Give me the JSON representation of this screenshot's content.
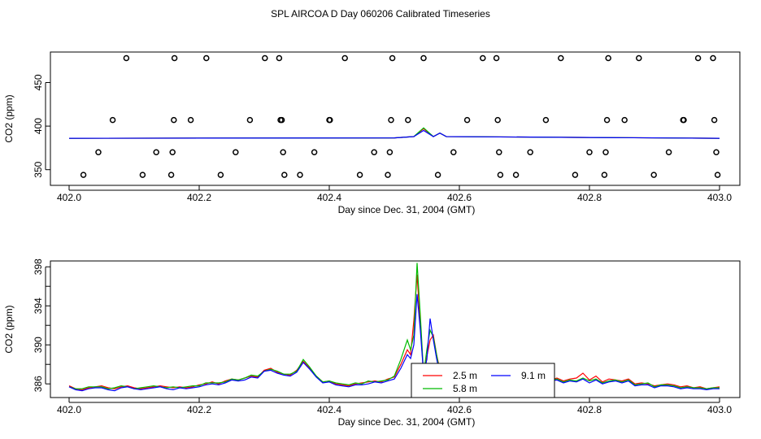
{
  "figure": {
    "title": "SPL AIRCOA D  Day 060206  Calibrated Timeseries"
  },
  "chart_data": [
    {
      "type": "scatter",
      "title": "SPL AIRCOA D  Day 060206  Calibrated Timeseries",
      "xlabel": "Day since Dec. 31, 2004 (GMT)",
      "ylabel": "CO2 (ppm)",
      "xlim": [
        402.0,
        403.0
      ],
      "ylim": [
        332,
        485
      ],
      "xticks": [
        "402.0",
        "402.2",
        "402.4",
        "402.6",
        "402.8",
        "403.0"
      ],
      "xtick_values": [
        402.0,
        402.2,
        402.4,
        402.6,
        402.8,
        403.0
      ],
      "yticks": [
        "350",
        "400",
        "450"
      ],
      "ytick_values": [
        350,
        400,
        450
      ],
      "grid": false,
      "colors": {
        "2.5 m": "#ff0000",
        "5.8 m": "#00bb00",
        "9.1 m": "#0000ff",
        "points": "#000000"
      },
      "points": [
        [
          402.022,
          344
        ],
        [
          402.045,
          370
        ],
        [
          402.067,
          407
        ],
        [
          402.088,
          478
        ],
        [
          402.113,
          344
        ],
        [
          402.134,
          370
        ],
        [
          402.157,
          344
        ],
        [
          402.159,
          370
        ],
        [
          402.161,
          407
        ],
        [
          402.162,
          478
        ],
        [
          402.187,
          407
        ],
        [
          402.211,
          478
        ],
        [
          402.233,
          344
        ],
        [
          402.256,
          370
        ],
        [
          402.278,
          407
        ],
        [
          402.301,
          478
        ],
        [
          402.323,
          478
        ],
        [
          402.325,
          407
        ],
        [
          402.327,
          407
        ],
        [
          402.329,
          370
        ],
        [
          402.331,
          344
        ],
        [
          402.355,
          344
        ],
        [
          402.377,
          370
        ],
        [
          402.4,
          407
        ],
        [
          402.401,
          407
        ],
        [
          402.424,
          478
        ],
        [
          402.447,
          344
        ],
        [
          402.469,
          370
        ],
        [
          402.49,
          344
        ],
        [
          402.493,
          370
        ],
        [
          402.495,
          407
        ],
        [
          402.497,
          478
        ],
        [
          402.521,
          407
        ],
        [
          402.545,
          478
        ],
        [
          402.567,
          344
        ],
        [
          402.591,
          370
        ],
        [
          402.612,
          407
        ],
        [
          402.636,
          478
        ],
        [
          402.657,
          478
        ],
        [
          402.659,
          407
        ],
        [
          402.661,
          370
        ],
        [
          402.663,
          344
        ],
        [
          402.687,
          344
        ],
        [
          402.709,
          370
        ],
        [
          402.733,
          407
        ],
        [
          402.756,
          478
        ],
        [
          402.778,
          344
        ],
        [
          402.8,
          370
        ],
        [
          402.823,
          344
        ],
        [
          402.825,
          370
        ],
        [
          402.827,
          407
        ],
        [
          402.829,
          478
        ],
        [
          402.854,
          407
        ],
        [
          402.876,
          478
        ],
        [
          402.899,
          344
        ],
        [
          402.922,
          370
        ],
        [
          402.944,
          407
        ],
        [
          402.945,
          407
        ],
        [
          402.967,
          478
        ],
        [
          402.99,
          478
        ],
        [
          402.992,
          407
        ],
        [
          402.995,
          370
        ],
        [
          402.997,
          344
        ]
      ],
      "series": [
        {
          "name": "2.5 m",
          "x": [
            402.0,
            402.5,
            402.53,
            402.545,
            402.56,
            402.57,
            402.58,
            403.0
          ],
          "values": [
            386,
            386.5,
            388,
            397,
            388,
            392,
            388,
            386
          ]
        },
        {
          "name": "5.8 m",
          "x": [
            402.0,
            402.5,
            402.53,
            402.545,
            402.56,
            402.57,
            402.58,
            403.0
          ],
          "values": [
            386,
            386.5,
            388,
            398,
            388,
            392,
            388,
            386
          ]
        },
        {
          "name": "9.1 m",
          "x": [
            402.0,
            402.5,
            402.53,
            402.545,
            402.56,
            402.57,
            402.58,
            403.0
          ],
          "values": [
            386,
            386.5,
            388,
            395,
            388,
            392,
            388,
            386
          ]
        }
      ]
    },
    {
      "type": "line",
      "xlabel": "Day since Dec. 31, 2004 (GMT)",
      "ylabel": "CO2 (ppm)",
      "xlim": [
        402.0,
        403.0
      ],
      "ylim": [
        384.6,
        398.6
      ],
      "xticks": [
        "402.0",
        "402.2",
        "402.4",
        "402.6",
        "402.8",
        "403.0"
      ],
      "xtick_values": [
        402.0,
        402.2,
        402.4,
        402.6,
        402.8,
        403.0
      ],
      "yticks": [
        "386",
        "390",
        "394",
        "398"
      ],
      "ytick_values": [
        386,
        390,
        394,
        398
      ],
      "minor_yticks": [
        388,
        392,
        396
      ],
      "grid": false,
      "legend": {
        "position": "bottom-right",
        "entries": [
          "2.5 m",
          "5.8 m",
          "9.1 m"
        ]
      },
      "x": [
        402.0,
        402.01,
        402.02,
        402.03,
        402.04,
        402.05,
        402.06,
        402.07,
        402.08,
        402.09,
        402.1,
        402.11,
        402.12,
        402.13,
        402.14,
        402.15,
        402.16,
        402.17,
        402.18,
        402.19,
        402.2,
        402.21,
        402.22,
        402.23,
        402.24,
        402.25,
        402.26,
        402.27,
        402.28,
        402.29,
        402.3,
        402.31,
        402.32,
        402.33,
        402.34,
        402.35,
        402.36,
        402.37,
        402.38,
        402.39,
        402.4,
        402.41,
        402.42,
        402.43,
        402.44,
        402.45,
        402.46,
        402.47,
        402.48,
        402.49,
        402.5,
        402.51,
        402.52,
        402.525,
        402.53,
        402.535,
        402.54,
        402.545,
        402.55,
        402.555,
        402.56,
        402.565,
        402.57,
        402.575,
        402.58,
        402.59,
        402.6,
        402.61,
        402.62,
        402.63,
        402.64,
        402.65,
        402.66,
        402.67,
        402.68,
        402.69,
        402.7,
        402.71,
        402.72,
        402.73,
        402.74,
        402.75,
        402.76,
        402.77,
        402.78,
        402.79,
        402.8,
        402.81,
        402.82,
        402.83,
        402.84,
        402.85,
        402.86,
        402.87,
        402.88,
        402.89,
        402.9,
        402.91,
        402.92,
        402.93,
        402.94,
        402.95,
        402.96,
        402.97,
        402.98,
        402.99,
        403.0
      ],
      "series": [
        {
          "name": "2.5 m",
          "values": [
            385.8,
            385.5,
            385.4,
            385.6,
            385.7,
            385.8,
            385.6,
            385.5,
            385.7,
            385.8,
            385.6,
            385.5,
            385.6,
            385.7,
            385.8,
            385.7,
            385.6,
            385.7,
            385.6,
            385.7,
            385.9,
            386.0,
            386.2,
            386.0,
            386.3,
            386.5,
            386.4,
            386.6,
            386.8,
            386.7,
            387.4,
            387.6,
            387.2,
            387.0,
            386.9,
            387.4,
            388.3,
            387.6,
            386.8,
            386.2,
            386.3,
            386.0,
            385.9,
            385.8,
            386.0,
            386.1,
            386.2,
            386.3,
            386.2,
            386.5,
            386.7,
            388.0,
            389.5,
            389.0,
            392.5,
            397.2,
            392.0,
            387.0,
            388.8,
            390.5,
            391.0,
            389.0,
            387.5,
            387.0,
            386.4,
            386.2,
            386.0,
            385.8,
            385.6,
            385.5,
            385.7,
            385.9,
            386.1,
            386.3,
            386.4,
            386.5,
            386.6,
            386.5,
            386.6,
            386.5,
            386.4,
            386.6,
            386.3,
            386.5,
            386.6,
            387.1,
            386.4,
            386.8,
            386.2,
            386.5,
            386.4,
            386.3,
            386.5,
            386.0,
            386.1,
            386.0,
            385.8,
            385.9,
            386.0,
            385.9,
            385.7,
            385.8,
            385.6,
            385.7,
            385.5,
            385.6,
            385.7
          ]
        },
        {
          "name": "5.8 m",
          "values": [
            385.7,
            385.5,
            385.5,
            385.7,
            385.7,
            385.7,
            385.5,
            385.6,
            385.8,
            385.7,
            385.5,
            385.6,
            385.7,
            385.8,
            385.7,
            385.6,
            385.7,
            385.6,
            385.7,
            385.8,
            385.8,
            386.1,
            386.1,
            386.1,
            386.2,
            386.5,
            386.4,
            386.6,
            386.9,
            386.8,
            387.3,
            387.5,
            387.3,
            387.0,
            387.0,
            387.3,
            388.5,
            387.7,
            386.8,
            386.2,
            386.3,
            386.1,
            386.0,
            385.9,
            386.1,
            386.0,
            386.3,
            386.2,
            386.3,
            386.4,
            386.8,
            388.5,
            390.5,
            389.5,
            391.0,
            398.4,
            393.0,
            387.0,
            389.5,
            391.5,
            390.8,
            389.0,
            387.2,
            386.8,
            386.3,
            386.1,
            386.0,
            385.7,
            385.6,
            385.6,
            385.8,
            385.9,
            386.2,
            386.4,
            386.5,
            386.6,
            386.6,
            386.6,
            386.5,
            386.6,
            386.4,
            386.5,
            386.2,
            386.4,
            386.3,
            386.6,
            386.3,
            386.5,
            386.1,
            386.3,
            386.4,
            386.2,
            386.4,
            385.9,
            386.0,
            386.1,
            385.7,
            385.9,
            385.9,
            385.8,
            385.6,
            385.7,
            385.6,
            385.6,
            385.5,
            385.6,
            385.6
          ]
        },
        {
          "name": "9.1 m",
          "values": [
            385.7,
            385.4,
            385.3,
            385.5,
            385.6,
            385.6,
            385.4,
            385.3,
            385.6,
            385.7,
            385.5,
            385.4,
            385.5,
            385.6,
            385.7,
            385.5,
            385.4,
            385.6,
            385.5,
            385.6,
            385.7,
            385.9,
            386.0,
            385.9,
            386.1,
            386.4,
            386.3,
            386.4,
            386.7,
            386.6,
            387.3,
            387.4,
            387.1,
            386.9,
            386.8,
            387.2,
            388.2,
            387.5,
            386.7,
            386.1,
            386.2,
            385.9,
            385.8,
            385.7,
            385.9,
            385.9,
            386.0,
            386.2,
            386.1,
            386.3,
            386.5,
            387.6,
            389.0,
            388.6,
            390.0,
            395.2,
            391.5,
            387.0,
            388.5,
            392.7,
            390.5,
            388.6,
            387.0,
            386.7,
            386.2,
            386.0,
            385.8,
            385.6,
            385.4,
            385.4,
            385.6,
            385.8,
            386.0,
            386.2,
            386.3,
            386.4,
            386.5,
            386.4,
            386.5,
            386.4,
            386.3,
            386.4,
            386.1,
            386.3,
            386.2,
            386.5,
            386.1,
            386.4,
            386.0,
            386.2,
            386.3,
            386.1,
            386.3,
            385.8,
            385.9,
            385.9,
            385.6,
            385.8,
            385.8,
            385.7,
            385.5,
            385.6,
            385.5,
            385.5,
            385.4,
            385.5,
            385.5
          ]
        }
      ]
    }
  ]
}
